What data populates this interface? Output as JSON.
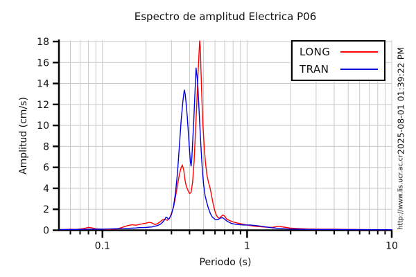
{
  "watermarks": {
    "timestamp": "2025-08-01 01:39:22 PM",
    "url": "http://www.lis.ucr.ac.cr"
  },
  "chart_data": {
    "type": "line",
    "title": "Espectro de amplitud Electrica P06",
    "xlabel": "Periodo (s)",
    "ylabel": "Amplitud (cm/s)",
    "x_scale": "log",
    "xlim": [
      0.05,
      10
    ],
    "ylim": [
      0,
      18
    ],
    "y_ticks": [
      0,
      2,
      4,
      6,
      8,
      10,
      12,
      14,
      16,
      18
    ],
    "x_major_ticks": [
      {
        "value": 0.1,
        "label": "0.1"
      },
      {
        "value": 1,
        "label": "1"
      },
      {
        "value": 10,
        "label": "10"
      }
    ],
    "grid": true,
    "grid_color": "#c9c9c9",
    "axis_color": "#000000",
    "legend_position": "top-right",
    "series": [
      {
        "name": "LONG",
        "color": "#ff0000",
        "points": [
          [
            0.05,
            0.07
          ],
          [
            0.055,
            0.07
          ],
          [
            0.06,
            0.1
          ],
          [
            0.065,
            0.08
          ],
          [
            0.07,
            0.12
          ],
          [
            0.075,
            0.18
          ],
          [
            0.08,
            0.28
          ],
          [
            0.085,
            0.22
          ],
          [
            0.09,
            0.14
          ],
          [
            0.095,
            0.12
          ],
          [
            0.1,
            0.1
          ],
          [
            0.11,
            0.08
          ],
          [
            0.12,
            0.1
          ],
          [
            0.13,
            0.18
          ],
          [
            0.14,
            0.32
          ],
          [
            0.15,
            0.45
          ],
          [
            0.16,
            0.52
          ],
          [
            0.17,
            0.48
          ],
          [
            0.18,
            0.55
          ],
          [
            0.19,
            0.62
          ],
          [
            0.2,
            0.68
          ],
          [
            0.21,
            0.75
          ],
          [
            0.22,
            0.7
          ],
          [
            0.23,
            0.55
          ],
          [
            0.24,
            0.62
          ],
          [
            0.25,
            0.8
          ],
          [
            0.26,
            1.0
          ],
          [
            0.27,
            1.05
          ],
          [
            0.28,
            0.95
          ],
          [
            0.29,
            1.1
          ],
          [
            0.3,
            1.6
          ],
          [
            0.31,
            2.2
          ],
          [
            0.32,
            3.2
          ],
          [
            0.33,
            4.3
          ],
          [
            0.34,
            5.3
          ],
          [
            0.35,
            6.0
          ],
          [
            0.357,
            6.2
          ],
          [
            0.365,
            5.7
          ],
          [
            0.372,
            4.8
          ],
          [
            0.38,
            4.2
          ],
          [
            0.39,
            3.8
          ],
          [
            0.4,
            3.5
          ],
          [
            0.41,
            3.6
          ],
          [
            0.42,
            4.6
          ],
          [
            0.43,
            6.5
          ],
          [
            0.44,
            9.5
          ],
          [
            0.45,
            12.5
          ],
          [
            0.458,
            15.0
          ],
          [
            0.465,
            16.8
          ],
          [
            0.47,
            18.1
          ],
          [
            0.475,
            17.3
          ],
          [
            0.48,
            15.2
          ],
          [
            0.487,
            12.5
          ],
          [
            0.495,
            10.0
          ],
          [
            0.505,
            8.0
          ],
          [
            0.515,
            6.5
          ],
          [
            0.527,
            5.3
          ],
          [
            0.54,
            4.6
          ],
          [
            0.555,
            4.0
          ],
          [
            0.57,
            3.2
          ],
          [
            0.585,
            2.4
          ],
          [
            0.6,
            1.8
          ],
          [
            0.615,
            1.4
          ],
          [
            0.63,
            1.2
          ],
          [
            0.645,
            1.15
          ],
          [
            0.66,
            1.3
          ],
          [
            0.68,
            1.45
          ],
          [
            0.7,
            1.35
          ],
          [
            0.72,
            1.1
          ],
          [
            0.75,
            0.95
          ],
          [
            0.8,
            0.8
          ],
          [
            0.85,
            0.7
          ],
          [
            0.92,
            0.6
          ],
          [
            1.0,
            0.5
          ],
          [
            1.1,
            0.4
          ],
          [
            1.2,
            0.35
          ],
          [
            1.35,
            0.3
          ],
          [
            1.5,
            0.28
          ],
          [
            1.65,
            0.38
          ],
          [
            1.8,
            0.3
          ],
          [
            2.0,
            0.2
          ],
          [
            2.3,
            0.15
          ],
          [
            2.7,
            0.12
          ],
          [
            3.2,
            0.1
          ],
          [
            4.0,
            0.1
          ],
          [
            5.0,
            0.08
          ],
          [
            6.5,
            0.06
          ],
          [
            8.0,
            0.06
          ],
          [
            10,
            0.05
          ]
        ]
      },
      {
        "name": "TRAN",
        "color": "#0000dd",
        "points": [
          [
            0.05,
            0.06
          ],
          [
            0.06,
            0.07
          ],
          [
            0.07,
            0.08
          ],
          [
            0.08,
            0.09
          ],
          [
            0.09,
            0.1
          ],
          [
            0.1,
            0.1
          ],
          [
            0.11,
            0.12
          ],
          [
            0.12,
            0.13
          ],
          [
            0.13,
            0.15
          ],
          [
            0.14,
            0.16
          ],
          [
            0.15,
            0.18
          ],
          [
            0.16,
            0.2
          ],
          [
            0.17,
            0.22
          ],
          [
            0.18,
            0.25
          ],
          [
            0.19,
            0.25
          ],
          [
            0.2,
            0.27
          ],
          [
            0.21,
            0.3
          ],
          [
            0.22,
            0.32
          ],
          [
            0.23,
            0.38
          ],
          [
            0.24,
            0.45
          ],
          [
            0.25,
            0.55
          ],
          [
            0.26,
            0.75
          ],
          [
            0.27,
            1.05
          ],
          [
            0.275,
            1.25
          ],
          [
            0.28,
            1.2
          ],
          [
            0.285,
            1.05
          ],
          [
            0.29,
            1.15
          ],
          [
            0.3,
            1.5
          ],
          [
            0.31,
            2.3
          ],
          [
            0.32,
            3.6
          ],
          [
            0.33,
            5.5
          ],
          [
            0.34,
            8.0
          ],
          [
            0.35,
            10.5
          ],
          [
            0.36,
            12.3
          ],
          [
            0.368,
            13.4
          ],
          [
            0.373,
            13.0
          ],
          [
            0.378,
            12.2
          ],
          [
            0.385,
            11.0
          ],
          [
            0.392,
            9.4
          ],
          [
            0.4,
            7.6
          ],
          [
            0.405,
            6.6
          ],
          [
            0.41,
            6.1
          ],
          [
            0.415,
            6.9
          ],
          [
            0.42,
            8.3
          ],
          [
            0.428,
            10.5
          ],
          [
            0.435,
            12.8
          ],
          [
            0.44,
            14.3
          ],
          [
            0.444,
            15.5
          ],
          [
            0.448,
            14.9
          ],
          [
            0.452,
            14.5
          ],
          [
            0.457,
            13.6
          ],
          [
            0.462,
            12.4
          ],
          [
            0.468,
            10.8
          ],
          [
            0.475,
            9.0
          ],
          [
            0.483,
            7.2
          ],
          [
            0.49,
            5.8
          ],
          [
            0.5,
            4.4
          ],
          [
            0.512,
            3.3
          ],
          [
            0.525,
            2.7
          ],
          [
            0.54,
            2.1
          ],
          [
            0.557,
            1.6
          ],
          [
            0.575,
            1.25
          ],
          [
            0.6,
            1.05
          ],
          [
            0.625,
            1.0
          ],
          [
            0.65,
            1.15
          ],
          [
            0.675,
            1.2
          ],
          [
            0.7,
            1.05
          ],
          [
            0.73,
            0.85
          ],
          [
            0.78,
            0.65
          ],
          [
            0.85,
            0.55
          ],
          [
            0.95,
            0.5
          ],
          [
            1.05,
            0.5
          ],
          [
            1.15,
            0.45
          ],
          [
            1.3,
            0.35
          ],
          [
            1.45,
            0.25
          ],
          [
            1.65,
            0.18
          ],
          [
            1.9,
            0.12
          ],
          [
            2.2,
            0.1
          ],
          [
            2.6,
            0.08
          ],
          [
            3.2,
            0.07
          ],
          [
            4.0,
            0.07
          ],
          [
            5.5,
            0.06
          ],
          [
            7.0,
            0.05
          ],
          [
            10,
            0.05
          ]
        ]
      }
    ]
  }
}
